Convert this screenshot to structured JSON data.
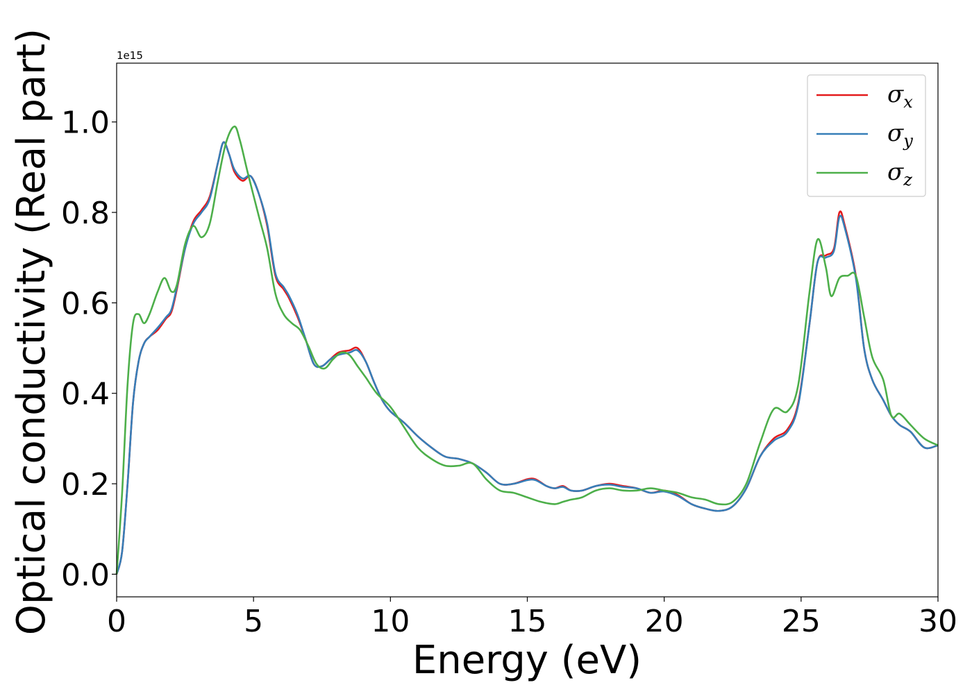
{
  "chart_data": {
    "type": "line",
    "xlabel": "Energy (eV)",
    "ylabel": "Optical conductivity (Real part)",
    "y_offset_text": "1e15",
    "xlim": [
      0,
      30
    ],
    "ylim": [
      -0.05,
      1.13
    ],
    "x_ticks": [
      0,
      5,
      10,
      15,
      20,
      25,
      30
    ],
    "x_tick_labels": [
      "0",
      "5",
      "10",
      "15",
      "20",
      "25",
      "30"
    ],
    "y_ticks": [
      0.0,
      0.2,
      0.4,
      0.6,
      0.8,
      1.0
    ],
    "y_tick_labels": [
      "0.0",
      "0.2",
      "0.4",
      "0.6",
      "0.8",
      "1.0"
    ],
    "grid": false,
    "legend_position": "top-right",
    "series": [
      {
        "name": "σx",
        "symbol": "σ",
        "subscript": "x",
        "color": "#e41a1c",
        "points": [
          [
            0,
            0.0
          ],
          [
            0.2,
            0.05
          ],
          [
            0.4,
            0.2
          ],
          [
            0.6,
            0.38
          ],
          [
            0.8,
            0.47
          ],
          [
            1.0,
            0.51
          ],
          [
            1.2,
            0.525
          ],
          [
            1.5,
            0.54
          ],
          [
            1.8,
            0.565
          ],
          [
            2.0,
            0.58
          ],
          [
            2.2,
            0.63
          ],
          [
            2.5,
            0.72
          ],
          [
            2.8,
            0.78
          ],
          [
            3.1,
            0.805
          ],
          [
            3.4,
            0.835
          ],
          [
            3.7,
            0.91
          ],
          [
            3.9,
            0.955
          ],
          [
            4.1,
            0.93
          ],
          [
            4.3,
            0.89
          ],
          [
            4.6,
            0.87
          ],
          [
            4.9,
            0.88
          ],
          [
            5.2,
            0.84
          ],
          [
            5.5,
            0.77
          ],
          [
            5.8,
            0.66
          ],
          [
            6.1,
            0.63
          ],
          [
            6.3,
            0.61
          ],
          [
            6.6,
            0.57
          ],
          [
            6.9,
            0.52
          ],
          [
            7.2,
            0.465
          ],
          [
            7.5,
            0.46
          ],
          [
            7.8,
            0.475
          ],
          [
            8.1,
            0.49
          ],
          [
            8.5,
            0.495
          ],
          [
            8.8,
            0.5
          ],
          [
            9.1,
            0.47
          ],
          [
            9.4,
            0.425
          ],
          [
            9.7,
            0.385
          ],
          [
            10.0,
            0.36
          ],
          [
            10.5,
            0.335
          ],
          [
            11.0,
            0.305
          ],
          [
            11.5,
            0.28
          ],
          [
            12.0,
            0.26
          ],
          [
            12.5,
            0.255
          ],
          [
            13.0,
            0.245
          ],
          [
            13.5,
            0.225
          ],
          [
            14.0,
            0.2
          ],
          [
            14.5,
            0.2
          ],
          [
            15.0,
            0.21
          ],
          [
            15.3,
            0.21
          ],
          [
            15.7,
            0.195
          ],
          [
            16.0,
            0.19
          ],
          [
            16.3,
            0.195
          ],
          [
            16.6,
            0.185
          ],
          [
            17.0,
            0.185
          ],
          [
            17.5,
            0.195
          ],
          [
            18.0,
            0.2
          ],
          [
            18.5,
            0.195
          ],
          [
            19.0,
            0.19
          ],
          [
            19.5,
            0.18
          ],
          [
            20.0,
            0.185
          ],
          [
            20.5,
            0.175
          ],
          [
            21.0,
            0.155
          ],
          [
            21.5,
            0.145
          ],
          [
            22.0,
            0.14
          ],
          [
            22.5,
            0.15
          ],
          [
            23.0,
            0.19
          ],
          [
            23.5,
            0.26
          ],
          [
            24.0,
            0.3
          ],
          [
            24.5,
            0.32
          ],
          [
            24.9,
            0.38
          ],
          [
            25.3,
            0.55
          ],
          [
            25.6,
            0.69
          ],
          [
            25.9,
            0.705
          ],
          [
            26.2,
            0.72
          ],
          [
            26.4,
            0.8
          ],
          [
            26.6,
            0.77
          ],
          [
            27.0,
            0.66
          ],
          [
            27.3,
            0.5
          ],
          [
            27.6,
            0.43
          ],
          [
            28.0,
            0.385
          ],
          [
            28.3,
            0.35
          ],
          [
            28.6,
            0.33
          ],
          [
            29.0,
            0.315
          ],
          [
            29.5,
            0.28
          ],
          [
            30.0,
            0.285
          ]
        ]
      },
      {
        "name": "σy",
        "symbol": "σ",
        "subscript": "y",
        "color": "#377eb8",
        "points": [
          [
            0,
            0.0
          ],
          [
            0.2,
            0.05
          ],
          [
            0.4,
            0.2
          ],
          [
            0.6,
            0.38
          ],
          [
            0.8,
            0.47
          ],
          [
            1.0,
            0.51
          ],
          [
            1.2,
            0.525
          ],
          [
            1.5,
            0.545
          ],
          [
            1.8,
            0.568
          ],
          [
            2.0,
            0.585
          ],
          [
            2.2,
            0.635
          ],
          [
            2.5,
            0.72
          ],
          [
            2.8,
            0.775
          ],
          [
            3.1,
            0.8
          ],
          [
            3.4,
            0.83
          ],
          [
            3.7,
            0.91
          ],
          [
            3.9,
            0.955
          ],
          [
            4.1,
            0.93
          ],
          [
            4.3,
            0.895
          ],
          [
            4.6,
            0.875
          ],
          [
            4.9,
            0.88
          ],
          [
            5.2,
            0.84
          ],
          [
            5.5,
            0.775
          ],
          [
            5.8,
            0.665
          ],
          [
            6.1,
            0.635
          ],
          [
            6.3,
            0.615
          ],
          [
            6.6,
            0.575
          ],
          [
            6.9,
            0.52
          ],
          [
            7.2,
            0.465
          ],
          [
            7.5,
            0.46
          ],
          [
            7.8,
            0.475
          ],
          [
            8.1,
            0.485
          ],
          [
            8.5,
            0.49
          ],
          [
            8.8,
            0.495
          ],
          [
            9.1,
            0.47
          ],
          [
            9.4,
            0.425
          ],
          [
            9.7,
            0.385
          ],
          [
            10.0,
            0.36
          ],
          [
            10.5,
            0.335
          ],
          [
            11.0,
            0.305
          ],
          [
            11.5,
            0.28
          ],
          [
            12.0,
            0.26
          ],
          [
            12.5,
            0.255
          ],
          [
            13.0,
            0.245
          ],
          [
            13.5,
            0.225
          ],
          [
            14.0,
            0.2
          ],
          [
            14.5,
            0.2
          ],
          [
            15.0,
            0.208
          ],
          [
            15.3,
            0.208
          ],
          [
            15.7,
            0.195
          ],
          [
            16.0,
            0.19
          ],
          [
            16.3,
            0.193
          ],
          [
            16.6,
            0.185
          ],
          [
            17.0,
            0.185
          ],
          [
            17.5,
            0.195
          ],
          [
            18.0,
            0.198
          ],
          [
            18.5,
            0.193
          ],
          [
            19.0,
            0.19
          ],
          [
            19.5,
            0.18
          ],
          [
            20.0,
            0.183
          ],
          [
            20.5,
            0.173
          ],
          [
            21.0,
            0.155
          ],
          [
            21.5,
            0.145
          ],
          [
            22.0,
            0.14
          ],
          [
            22.5,
            0.15
          ],
          [
            23.0,
            0.19
          ],
          [
            23.5,
            0.26
          ],
          [
            24.0,
            0.295
          ],
          [
            24.5,
            0.315
          ],
          [
            24.9,
            0.375
          ],
          [
            25.3,
            0.55
          ],
          [
            25.6,
            0.69
          ],
          [
            25.9,
            0.7
          ],
          [
            26.2,
            0.715
          ],
          [
            26.4,
            0.79
          ],
          [
            26.6,
            0.765
          ],
          [
            27.0,
            0.655
          ],
          [
            27.3,
            0.5
          ],
          [
            27.6,
            0.43
          ],
          [
            28.0,
            0.385
          ],
          [
            28.3,
            0.35
          ],
          [
            28.6,
            0.33
          ],
          [
            29.0,
            0.315
          ],
          [
            29.5,
            0.28
          ],
          [
            30.0,
            0.285
          ]
        ]
      },
      {
        "name": "σz",
        "symbol": "σ",
        "subscript": "z",
        "color": "#4daf4a",
        "points": [
          [
            0,
            0.0
          ],
          [
            0.2,
            0.18
          ],
          [
            0.4,
            0.42
          ],
          [
            0.6,
            0.555
          ],
          [
            0.8,
            0.575
          ],
          [
            1.0,
            0.555
          ],
          [
            1.2,
            0.575
          ],
          [
            1.5,
            0.625
          ],
          [
            1.75,
            0.655
          ],
          [
            2.0,
            0.625
          ],
          [
            2.2,
            0.64
          ],
          [
            2.5,
            0.73
          ],
          [
            2.8,
            0.77
          ],
          [
            3.1,
            0.745
          ],
          [
            3.4,
            0.775
          ],
          [
            3.7,
            0.87
          ],
          [
            4.0,
            0.955
          ],
          [
            4.3,
            0.99
          ],
          [
            4.5,
            0.96
          ],
          [
            4.8,
            0.885
          ],
          [
            5.2,
            0.79
          ],
          [
            5.5,
            0.72
          ],
          [
            5.8,
            0.62
          ],
          [
            6.1,
            0.575
          ],
          [
            6.4,
            0.555
          ],
          [
            6.7,
            0.54
          ],
          [
            7.0,
            0.505
          ],
          [
            7.3,
            0.465
          ],
          [
            7.6,
            0.455
          ],
          [
            7.9,
            0.475
          ],
          [
            8.2,
            0.49
          ],
          [
            8.5,
            0.485
          ],
          [
            8.8,
            0.46
          ],
          [
            9.1,
            0.435
          ],
          [
            9.5,
            0.4
          ],
          [
            10.0,
            0.37
          ],
          [
            10.5,
            0.325
          ],
          [
            11.0,
            0.28
          ],
          [
            11.5,
            0.255
          ],
          [
            12.0,
            0.24
          ],
          [
            12.5,
            0.24
          ],
          [
            13.0,
            0.245
          ],
          [
            13.5,
            0.21
          ],
          [
            14.0,
            0.185
          ],
          [
            14.5,
            0.18
          ],
          [
            15.0,
            0.17
          ],
          [
            15.5,
            0.16
          ],
          [
            16.0,
            0.155
          ],
          [
            16.3,
            0.16
          ],
          [
            16.6,
            0.165
          ],
          [
            17.0,
            0.17
          ],
          [
            17.5,
            0.185
          ],
          [
            18.0,
            0.19
          ],
          [
            18.5,
            0.185
          ],
          [
            19.0,
            0.185
          ],
          [
            19.5,
            0.19
          ],
          [
            20.0,
            0.185
          ],
          [
            20.5,
            0.18
          ],
          [
            21.0,
            0.17
          ],
          [
            21.5,
            0.165
          ],
          [
            22.0,
            0.155
          ],
          [
            22.5,
            0.16
          ],
          [
            23.0,
            0.2
          ],
          [
            23.5,
            0.29
          ],
          [
            24.0,
            0.365
          ],
          [
            24.5,
            0.36
          ],
          [
            24.9,
            0.42
          ],
          [
            25.3,
            0.62
          ],
          [
            25.6,
            0.74
          ],
          [
            25.9,
            0.68
          ],
          [
            26.1,
            0.615
          ],
          [
            26.4,
            0.655
          ],
          [
            26.7,
            0.66
          ],
          [
            27.0,
            0.66
          ],
          [
            27.3,
            0.57
          ],
          [
            27.6,
            0.48
          ],
          [
            28.0,
            0.43
          ],
          [
            28.3,
            0.35
          ],
          [
            28.6,
            0.355
          ],
          [
            29.0,
            0.33
          ],
          [
            29.5,
            0.3
          ],
          [
            30.0,
            0.285
          ]
        ]
      }
    ]
  }
}
